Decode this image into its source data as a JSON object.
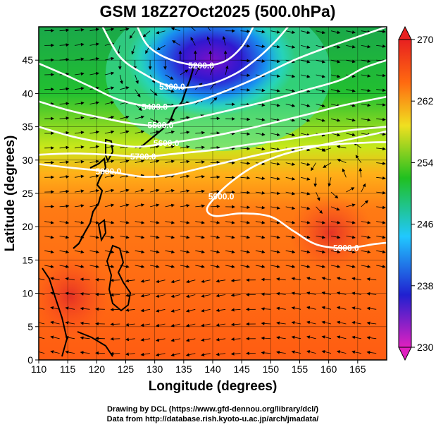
{
  "chart_data": {
    "type": "heatmap",
    "title": "GSM 18Z27Oct2025 (500.0hPa)",
    "xlabel": "Longitude (degrees)",
    "ylabel": "Latitude  (degrees)",
    "xlim": [
      110,
      170
    ],
    "ylim": [
      0,
      50
    ],
    "x_ticks": [
      110,
      115,
      120,
      125,
      130,
      135,
      140,
      145,
      150,
      155,
      160,
      165
    ],
    "y_ticks": [
      0,
      5,
      10,
      15,
      20,
      25,
      30,
      35,
      40,
      45
    ],
    "colorbar": {
      "min": 230,
      "max": 270,
      "ticks": [
        230,
        238,
        246,
        254,
        262,
        270
      ],
      "colors": [
        "#e020c0",
        "#2020d0",
        "#20c8ff",
        "#20c020",
        "#f0e020",
        "#ff6a10",
        "#e82020"
      ]
    },
    "contours": [
      {
        "label": "5200.0",
        "points": [
          [
            127,
            50
          ],
          [
            129,
            47
          ],
          [
            133,
            45
          ],
          [
            138,
            44.2
          ],
          [
            142,
            44.8
          ],
          [
            145,
            47
          ],
          [
            147,
            50
          ]
        ]
      },
      {
        "label": "5300.0",
        "points": [
          [
            121,
            50
          ],
          [
            124,
            45.5
          ],
          [
            128,
            43
          ],
          [
            133,
            41
          ],
          [
            139,
            41.3
          ],
          [
            144,
            43
          ],
          [
            148,
            45.5
          ],
          [
            151,
            48
          ],
          [
            153,
            50
          ]
        ]
      },
      {
        "label": "5400.0",
        "points": [
          [
            110,
            44.5
          ],
          [
            114,
            43
          ],
          [
            119,
            41
          ],
          [
            124,
            39
          ],
          [
            130,
            38
          ],
          [
            136,
            38.5
          ],
          [
            142,
            40.3
          ],
          [
            148,
            42.5
          ],
          [
            154,
            45
          ],
          [
            160,
            47
          ],
          [
            165,
            48.5
          ],
          [
            170,
            50
          ]
        ]
      },
      {
        "label": "5500.0",
        "points": [
          [
            110,
            38.8
          ],
          [
            115,
            37.5
          ],
          [
            120,
            36.5
          ],
          [
            126,
            35.5
          ],
          [
            131,
            35.2
          ],
          [
            137,
            36.3
          ],
          [
            143,
            37.5
          ],
          [
            150,
            39
          ],
          [
            156,
            40.5
          ],
          [
            162,
            42
          ],
          [
            166,
            43.8
          ],
          [
            170,
            45
          ]
        ]
      },
      {
        "label": "5600.0",
        "points": [
          [
            110,
            35
          ],
          [
            116,
            33.5
          ],
          [
            122,
            32.5
          ],
          [
            127,
            32
          ],
          [
            132,
            32.5
          ],
          [
            138,
            33.3
          ],
          [
            144,
            34.3
          ],
          [
            150,
            35.5
          ],
          [
            157,
            37
          ],
          [
            163,
            38.3
          ],
          [
            170,
            39.5
          ]
        ]
      },
      {
        "label": "5700.0",
        "points": [
          [
            110,
            30.8
          ],
          [
            116,
            31
          ],
          [
            122,
            30.8
          ],
          [
            128,
            30.5
          ],
          [
            134,
            31
          ],
          [
            140,
            31.5
          ],
          [
            146,
            32.3
          ],
          [
            152,
            33
          ],
          [
            158,
            33.8
          ],
          [
            164,
            34.5
          ],
          [
            170,
            35
          ]
        ]
      },
      {
        "label": "5800.0",
        "points": [
          [
            110,
            29.4
          ],
          [
            116,
            28.8
          ],
          [
            122,
            28.3
          ],
          [
            128,
            27.5
          ],
          [
            133,
            27.8
          ],
          [
            138,
            28.8
          ],
          [
            143,
            29.8
          ],
          [
            148,
            30.8
          ],
          [
            154,
            31.8
          ],
          [
            160,
            32.3
          ],
          [
            166,
            32.6
          ],
          [
            170,
            32.7
          ]
        ]
      },
      {
        "label": "5900.0",
        "points": [
          [
            170,
            34.3
          ],
          [
            164,
            33.2
          ],
          [
            158,
            32.1
          ],
          [
            152,
            30.8
          ],
          [
            147,
            29
          ],
          [
            143,
            26.6
          ],
          [
            140.5,
            24.5
          ],
          [
            139,
            22.6
          ],
          [
            140.5,
            21.6
          ],
          [
            145,
            22
          ],
          [
            150,
            21.5
          ],
          [
            154,
            19.3
          ],
          [
            158,
            17.3
          ],
          [
            163,
            16.8
          ],
          [
            168,
            17.4
          ],
          [
            170,
            17.6
          ]
        ]
      }
    ],
    "footer": [
      "Drawing by DCL (https://www.gfd-dennou.org/library/dcl/)",
      "Data from http://database.rish.kyoto-u.ac.jp/arch/jmadata/"
    ]
  }
}
